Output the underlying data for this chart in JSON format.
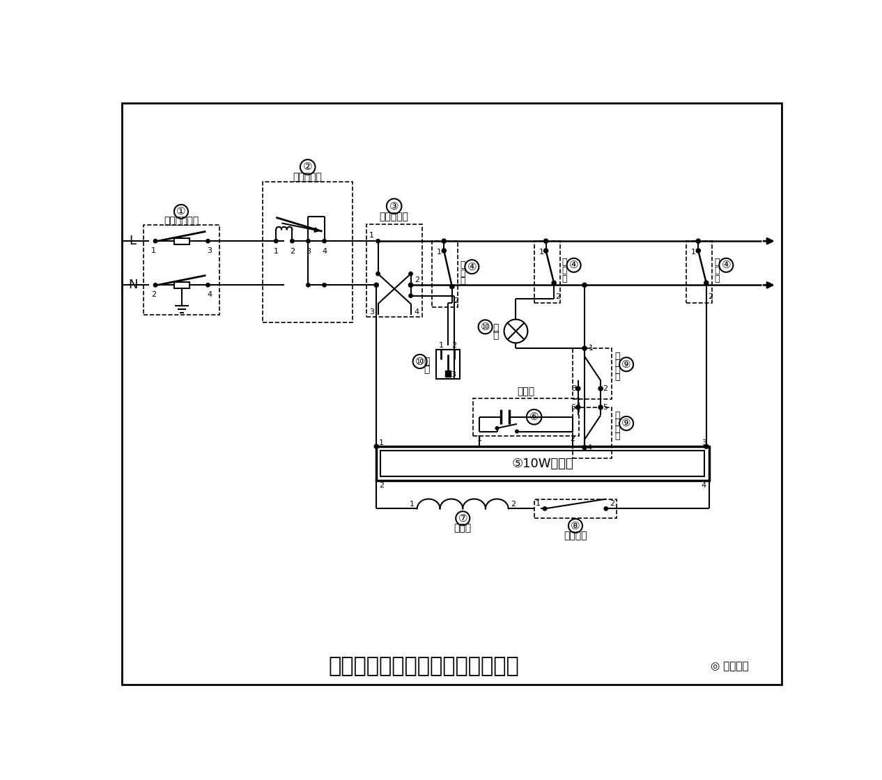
{
  "title": "日光灯照明与两控一灯一插座线路",
  "watermark": "电工之家",
  "bg_color": "#ffffff",
  "lc": "#000000",
  "components": {
    "1_label": "双刀胶壳开关",
    "2_label": "单相电度表",
    "3_label": "漏电保护器",
    "4_label": "断路器",
    "5_label": "10W日光灯",
    "6_label": "启辉器",
    "7_label": "镇流器",
    "8_label": "单控开关",
    "9_label": "双控开关",
    "10a_label": "插座",
    "10b_label": "灯泡"
  }
}
